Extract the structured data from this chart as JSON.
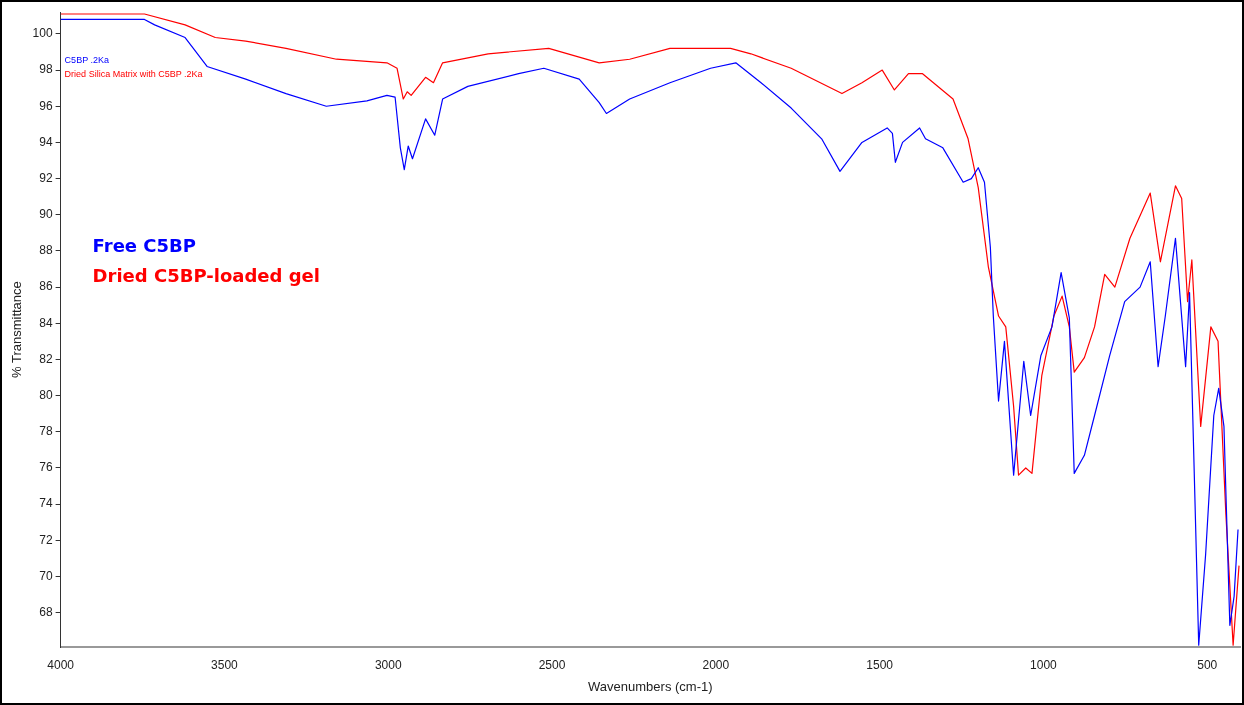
{
  "chart_data": {
    "type": "line",
    "xlabel": "Wavenumbers (cm-1)",
    "ylabel": "% Transmittance",
    "xlim": [
      4000,
      400
    ],
    "xticks": [
      4000,
      3500,
      3000,
      2500,
      2000,
      1500,
      1000,
      500
    ],
    "ylim": [
      66.1,
      101.2
    ],
    "yticks": [
      68,
      70,
      72,
      74,
      76,
      78,
      80,
      82,
      84,
      86,
      88,
      90,
      92,
      94,
      96,
      98,
      100
    ],
    "grid": false,
    "legend": "left",
    "marker": "none",
    "line_style": "solid",
    "annotations": [
      "C5BP .2Ka",
      "Dried Silica Matrix with C5BP .2Ka"
    ],
    "series": [
      {
        "name": "Free C5BP",
        "color": "#0000ff",
        "x": [
          4000,
          3744,
          3713,
          3620,
          3553,
          3435,
          3312,
          3189,
          3065,
          3004,
          2979,
          2963,
          2951,
          2939,
          2926,
          2886,
          2858,
          2834,
          2757,
          2602,
          2525,
          2417,
          2356,
          2334,
          2263,
          2140,
          2016,
          1939,
          1862,
          1770,
          1677,
          1621,
          1554,
          1477,
          1461,
          1452,
          1430,
          1378,
          1360,
          1307,
          1245,
          1220,
          1199,
          1180,
          1162,
          1153,
          1137,
          1119,
          1091,
          1060,
          1039,
          1008,
          974,
          946,
          921,
          906,
          875,
          844,
          798,
          752,
          705,
          674,
          650,
          628,
          597,
          566,
          554,
          526,
          505,
          480,
          465,
          449,
          431,
          418,
          406
        ],
        "values": [
          100.8,
          100.8,
          100.5,
          99.8,
          98.2,
          97.5,
          96.7,
          96.0,
          96.3,
          96.6,
          96.5,
          93.7,
          92.5,
          93.8,
          93.1,
          95.3,
          94.4,
          96.4,
          97.1,
          97.8,
          98.1,
          97.5,
          96.2,
          95.6,
          96.4,
          97.3,
          98.1,
          98.4,
          97.3,
          95.9,
          94.2,
          92.4,
          94.0,
          94.8,
          94.5,
          92.9,
          94.0,
          94.8,
          94.2,
          93.7,
          91.8,
          92.0,
          92.6,
          91.8,
          88.2,
          84.4,
          79.7,
          83.0,
          75.6,
          81.9,
          78.9,
          82.2,
          83.8,
          86.8,
          84.3,
          75.7,
          76.7,
          78.9,
          82.2,
          85.2,
          86.0,
          87.4,
          81.6,
          84.4,
          88.7,
          81.6,
          85.7,
          66.2,
          71.2,
          78.9,
          80.4,
          78.3,
          67.3,
          68.9,
          72.6
        ]
      },
      {
        "name": "Dried C5BP-loaded gel",
        "color": "#ff0000",
        "x": [
          4000,
          3744,
          3620,
          3528,
          3435,
          3312,
          3158,
          3004,
          2973,
          2954,
          2942,
          2930,
          2886,
          2862,
          2834,
          2695,
          2510,
          2356,
          2263,
          2140,
          1955,
          1893,
          1770,
          1615,
          1554,
          1492,
          1455,
          1412,
          1369,
          1276,
          1230,
          1199,
          1168,
          1137,
          1115,
          1091,
          1076,
          1054,
          1035,
          1005,
          968,
          943,
          921,
          906,
          875,
          844,
          813,
          782,
          736,
          674,
          643,
          597,
          578,
          560,
          547,
          520,
          489,
          467,
          443,
          421,
          403
        ],
        "values": [
          101.1,
          101.1,
          100.5,
          99.8,
          99.6,
          99.2,
          98.6,
          98.4,
          98.1,
          96.4,
          96.8,
          96.6,
          97.6,
          97.3,
          98.4,
          98.9,
          99.2,
          98.4,
          98.6,
          99.2,
          99.2,
          98.9,
          98.1,
          96.7,
          97.3,
          98.0,
          96.9,
          97.8,
          97.8,
          96.4,
          94.2,
          91.5,
          87.1,
          84.4,
          83.8,
          79.4,
          75.6,
          76.0,
          75.7,
          81.1,
          84.4,
          85.5,
          83.8,
          81.3,
          82.1,
          83.8,
          86.7,
          86.0,
          88.7,
          91.2,
          87.4,
          91.6,
          90.9,
          85.2,
          87.5,
          78.3,
          83.8,
          83.0,
          73.4,
          66.2,
          70.6
        ]
      }
    ]
  }
}
